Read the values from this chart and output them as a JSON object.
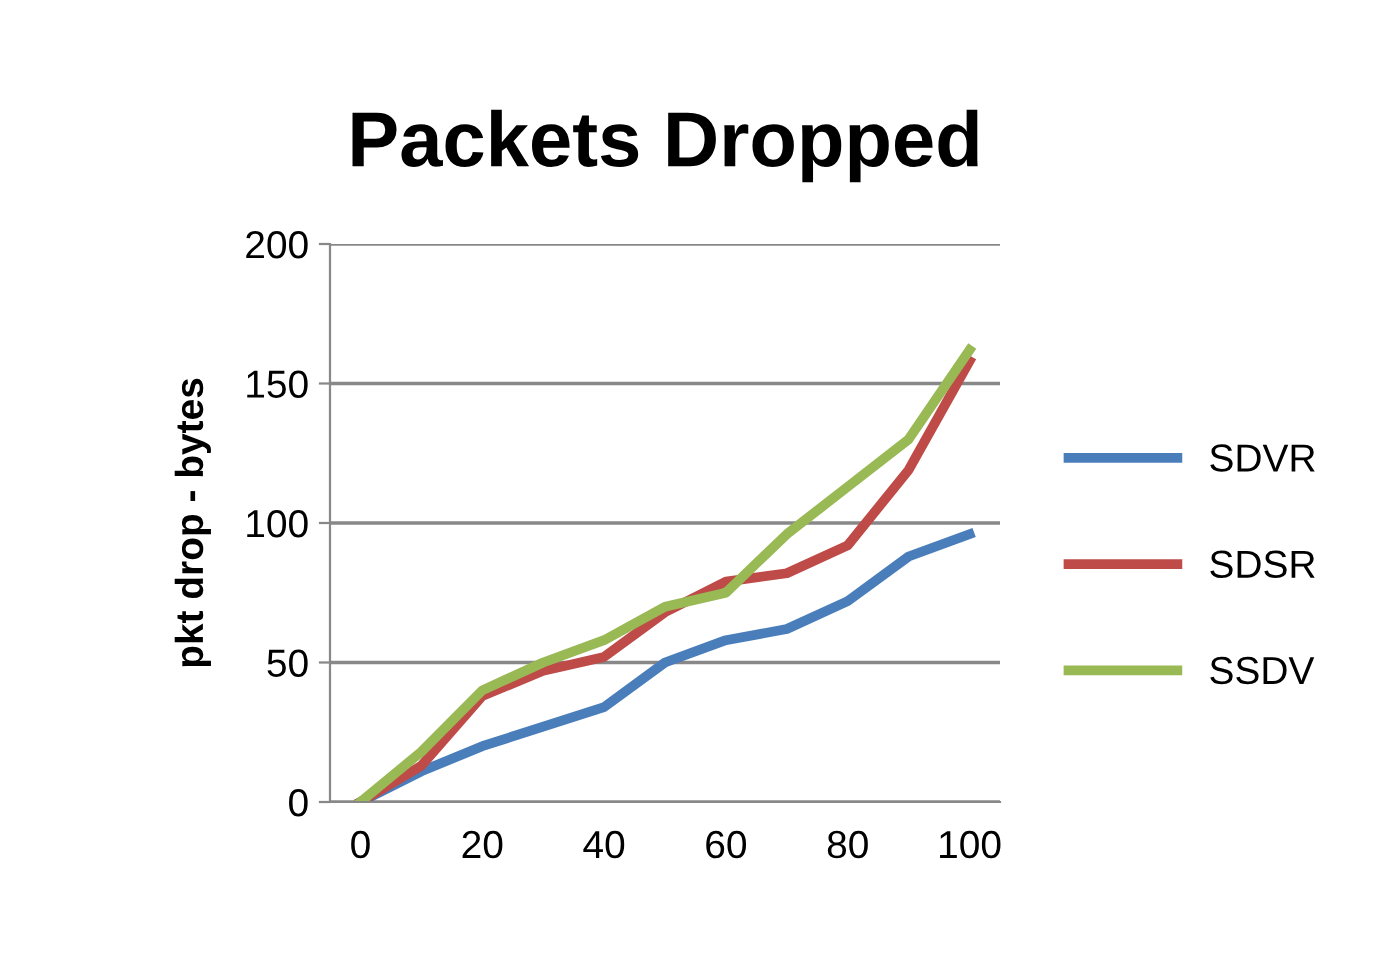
{
  "chart_data": {
    "type": "line",
    "title": "Packets Dropped",
    "ylabel": "pkt drop - bytes",
    "categories": [
      "0",
      null,
      "20",
      null,
      "40",
      null,
      "60",
      null,
      "80",
      null,
      "100"
    ],
    "series": [
      {
        "name": "SDVR",
        "color": "#4a7ebb",
        "values": [
          0,
          11,
          20,
          27,
          34,
          50,
          58,
          62,
          72,
          88,
          96
        ]
      },
      {
        "name": "SDSR",
        "color": "#be4b48",
        "values": [
          0,
          13,
          38,
          47,
          52,
          68,
          79,
          82,
          92,
          119,
          158
        ]
      },
      {
        "name": "SSDV",
        "color": "#98b954",
        "values": [
          0,
          18,
          40,
          50,
          58,
          70,
          75,
          96,
          113,
          130,
          162
        ]
      }
    ],
    "ylim": [
      0,
      200
    ],
    "yticks": [
      0,
      50,
      100,
      150,
      200
    ],
    "grid": "y",
    "legend": "right",
    "marker": "none",
    "line_style": "solid"
  }
}
